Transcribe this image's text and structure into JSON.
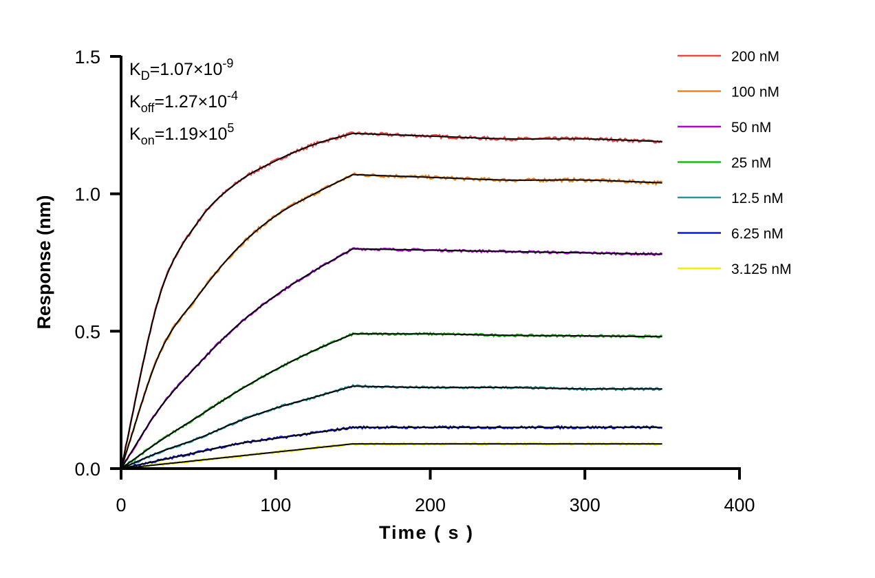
{
  "chart_data": {
    "type": "line",
    "xlabel": "Time ( s )",
    "ylabel": "Response (nm)",
    "xlim": [
      0,
      400
    ],
    "ylim": [
      0,
      1.5
    ],
    "xticks": [
      "0",
      "100",
      "200",
      "300",
      "400"
    ],
    "yticks": [
      "0.0",
      "0.5",
      "1.0",
      "1.5"
    ],
    "grid": false,
    "legend_position": "right",
    "annotations": [
      {
        "main": "K",
        "sub": "D",
        "text": "=1.07×10",
        "sup": "-9"
      },
      {
        "main": "K",
        "sub": "off",
        "text": "=1.27×10",
        "sup": "-4"
      },
      {
        "main": "K",
        "sub": "on",
        "text": "=1.19×10",
        "sup": "5"
      }
    ],
    "x": [
      0,
      25,
      50,
      75,
      100,
      125,
      150,
      200,
      250,
      300,
      350
    ],
    "fit_color": "#000000",
    "series": [
      {
        "name": "200 nM",
        "color": "#f04646",
        "values": [
          0,
          0.63,
          0.9,
          1.04,
          1.12,
          1.18,
          1.22,
          1.21,
          1.2,
          1.2,
          1.19
        ]
      },
      {
        "name": "100 nM",
        "color": "#f5820f",
        "values": [
          0,
          0.42,
          0.63,
          0.8,
          0.92,
          1.0,
          1.07,
          1.06,
          1.05,
          1.05,
          1.04
        ]
      },
      {
        "name": "50 nM",
        "color": "#b400e6",
        "values": [
          0,
          0.22,
          0.38,
          0.52,
          0.63,
          0.72,
          0.8,
          0.795,
          0.79,
          0.785,
          0.78
        ]
      },
      {
        "name": "25 nM",
        "color": "#14be14",
        "values": [
          0,
          0.1,
          0.19,
          0.28,
          0.36,
          0.43,
          0.49,
          0.49,
          0.485,
          0.483,
          0.48
        ]
      },
      {
        "name": "12.5 nM",
        "color": "#1e96a5",
        "values": [
          0,
          0.06,
          0.11,
          0.17,
          0.22,
          0.26,
          0.3,
          0.295,
          0.295,
          0.29,
          0.29
        ]
      },
      {
        "name": "6.25 nM",
        "color": "#0a14e6",
        "values": [
          0,
          0.03,
          0.06,
          0.09,
          0.11,
          0.13,
          0.15,
          0.15,
          0.15,
          0.15,
          0.15
        ]
      },
      {
        "name": "3.125 nM",
        "color": "#f5f000",
        "values": [
          0,
          0.015,
          0.03,
          0.045,
          0.06,
          0.075,
          0.09,
          0.09,
          0.09,
          0.09,
          0.09
        ]
      }
    ]
  }
}
